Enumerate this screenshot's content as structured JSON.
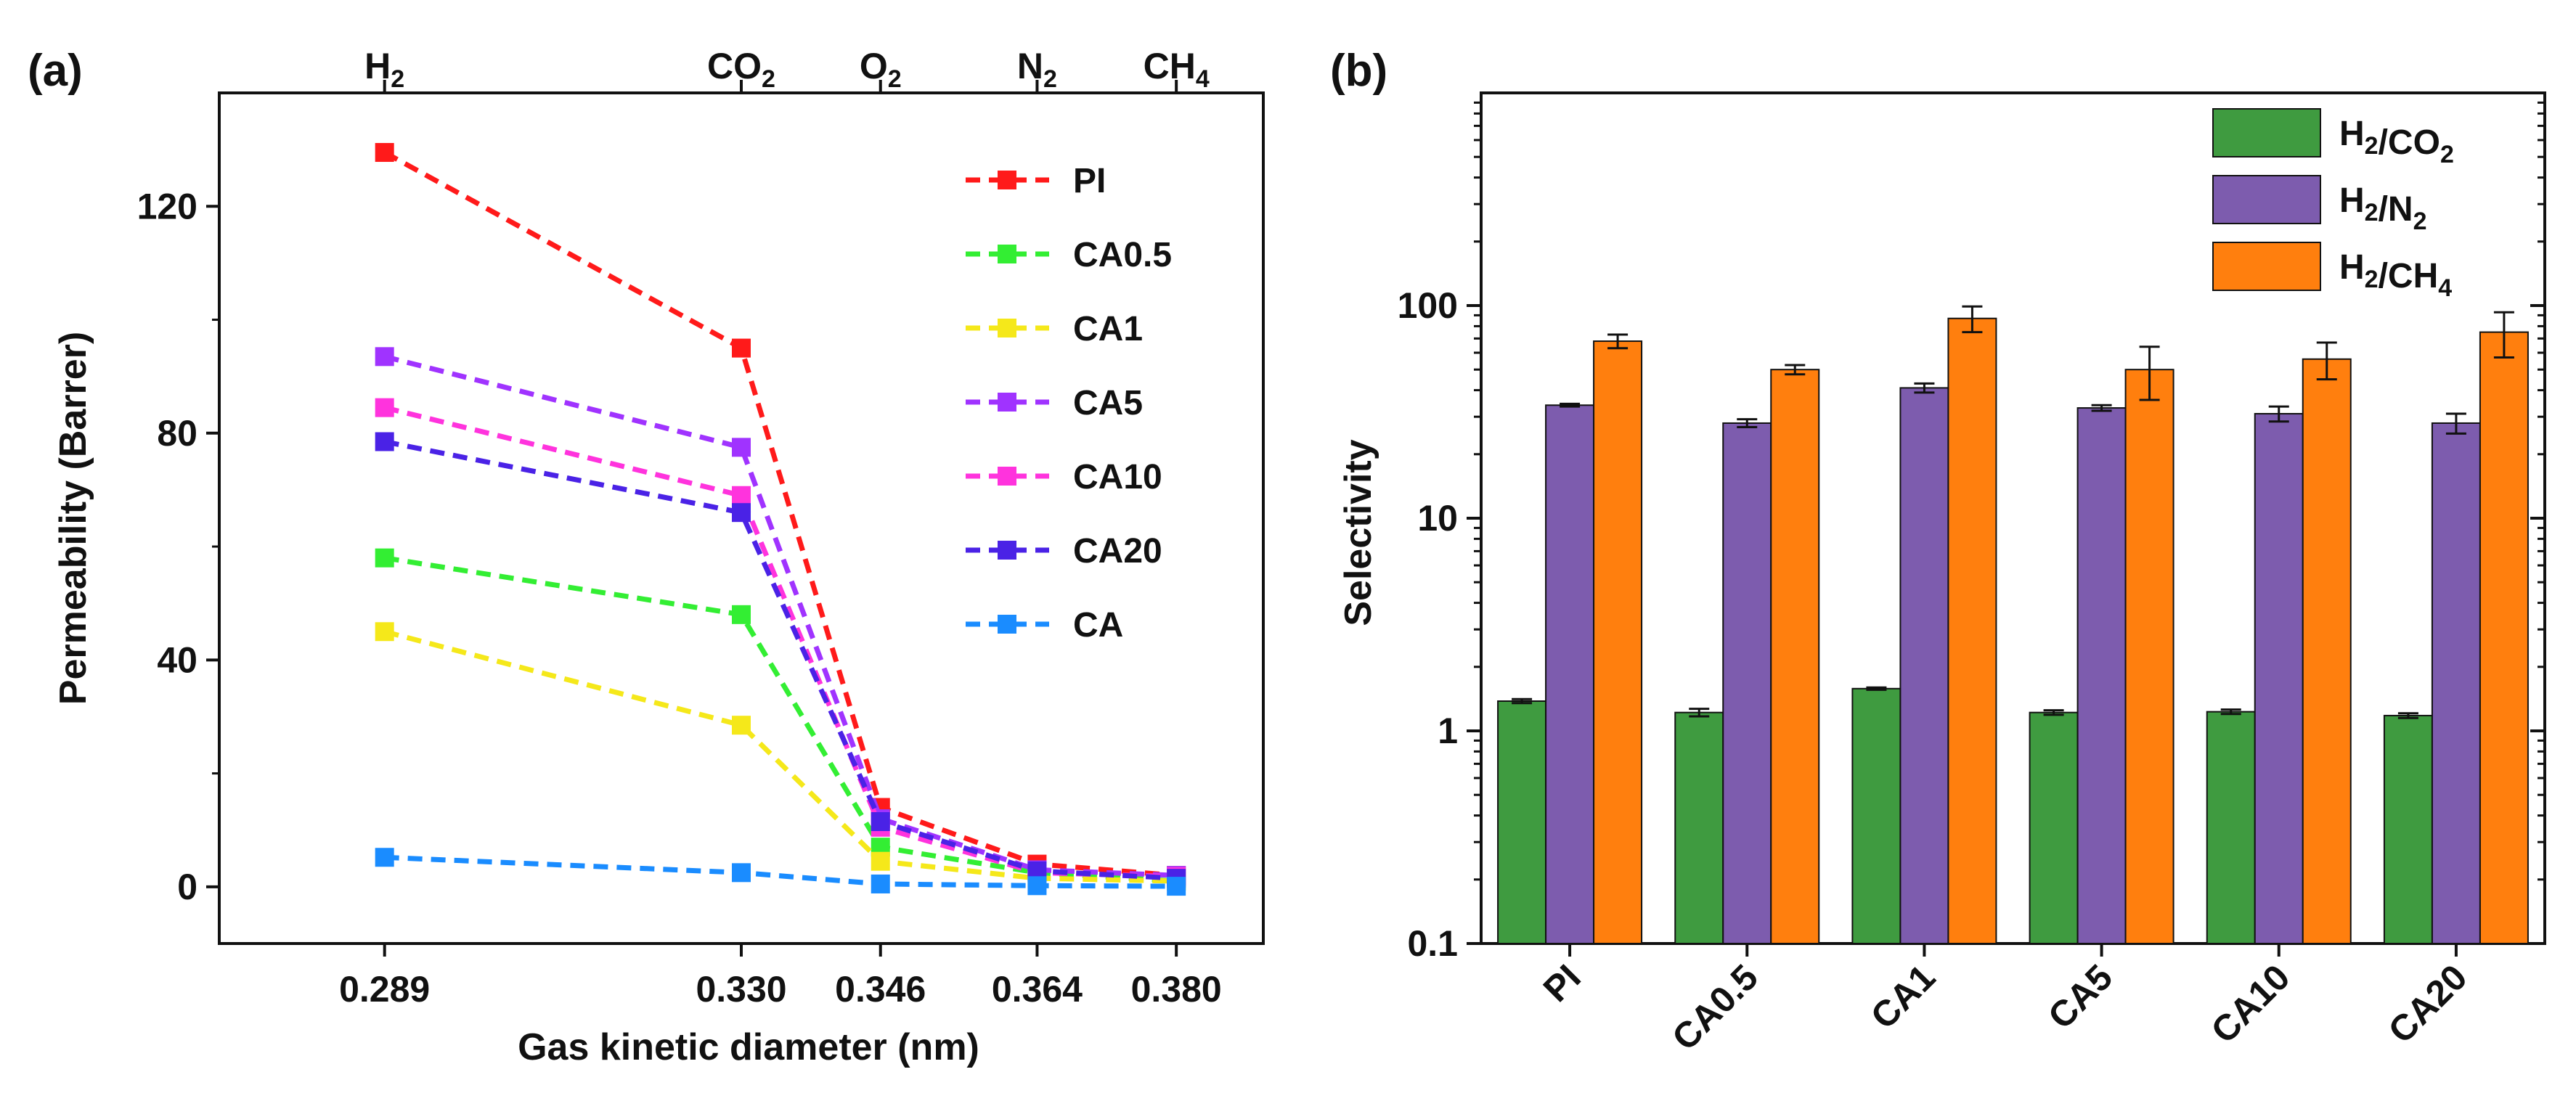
{
  "figure": {
    "panel_a_label": "(a)",
    "panel_b_label": "(b)"
  },
  "chart_data": [
    {
      "type": "line",
      "panel": "(a)",
      "title": "",
      "xlabel": "Gas kinetic diameter (nm)",
      "ylabel": "Permeability (Barrer)",
      "x": [
        0.289,
        0.33,
        0.346,
        0.364,
        0.38
      ],
      "x_tick_labels": [
        "0.289",
        "0.330",
        "0.346",
        "0.364",
        "0.380"
      ],
      "top_axis_labels": [
        {
          "base": "H",
          "sub": "2"
        },
        {
          "base": "CO",
          "sub": "2"
        },
        {
          "base": "O",
          "sub": "2"
        },
        {
          "base": "N",
          "sub": "2"
        },
        {
          "base": "CH",
          "sub": "4"
        }
      ],
      "xlim": [
        0.27,
        0.39
      ],
      "ylim": [
        -10,
        140
      ],
      "y_ticks": [
        0,
        40,
        80,
        120
      ],
      "y_tick_labels": [
        "0",
        "40",
        "80",
        "120"
      ],
      "line_style": "dashed",
      "marker": "square",
      "series": [
        {
          "name": "PI",
          "color": "#ff1a1a",
          "values": [
            129.5,
            95,
            14,
            4,
            2
          ]
        },
        {
          "name": "CA0.5",
          "color": "#33ee33",
          "values": [
            58,
            48,
            7,
            2.5,
            1
          ]
        },
        {
          "name": "CA1",
          "color": "#f5e81a",
          "values": [
            45,
            28.5,
            4.5,
            1.5,
            1
          ]
        },
        {
          "name": "CA5",
          "color": "#a033ff",
          "values": [
            93.5,
            77.5,
            12,
            3,
            2
          ]
        },
        {
          "name": "CA10",
          "color": "#ff33dd",
          "values": [
            84.5,
            69,
            10.5,
            2.5,
            1.8
          ]
        },
        {
          "name": "CA20",
          "color": "#4a22e6",
          "values": [
            78.5,
            66,
            11.5,
            2.8,
            1.5
          ]
        },
        {
          "name": "CA",
          "color": "#1a8cff",
          "values": [
            5.2,
            2.5,
            0.5,
            0.2,
            0.1
          ]
        }
      ]
    },
    {
      "type": "bar",
      "panel": "(b)",
      "title": "",
      "xlabel": "",
      "ylabel": "Selectivity",
      "scale": "log",
      "categories": [
        "PI",
        "CA0.5",
        "CA1",
        "CA5",
        "CA10",
        "CA20"
      ],
      "ylim": [
        0.1,
        1000
      ],
      "y_ticks": [
        0.1,
        1,
        10,
        100
      ],
      "y_tick_labels": [
        "0.1",
        "1",
        "10",
        "100"
      ],
      "series": [
        {
          "name": "H2/CO2",
          "label_parts": [
            {
              "base": "H",
              "sub": "2"
            },
            {
              "base": "/CO",
              "sub": "2"
            }
          ],
          "color": "#3f9b40",
          "values": [
            1.38,
            1.22,
            1.58,
            1.22,
            1.23,
            1.18
          ],
          "errors": [
            0.03,
            0.05,
            0.02,
            0.03,
            0.03,
            0.03
          ]
        },
        {
          "name": "H2/N2",
          "label_parts": [
            {
              "base": "H",
              "sub": "2"
            },
            {
              "base": "/N",
              "sub": "2"
            }
          ],
          "color": "#7d5cae",
          "values": [
            34,
            28,
            41,
            33,
            31,
            28
          ],
          "errors": [
            0.5,
            1.2,
            2,
            1,
            2.5,
            3
          ]
        },
        {
          "name": "H2/CH4",
          "label_parts": [
            {
              "base": "H",
              "sub": "2"
            },
            {
              "base": "/CH",
              "sub": "4"
            }
          ],
          "color": "#ff7f0e",
          "values": [
            68,
            50,
            87,
            50,
            56,
            75
          ],
          "errors": [
            5,
            2.5,
            12,
            14,
            11,
            18
          ]
        }
      ]
    }
  ]
}
